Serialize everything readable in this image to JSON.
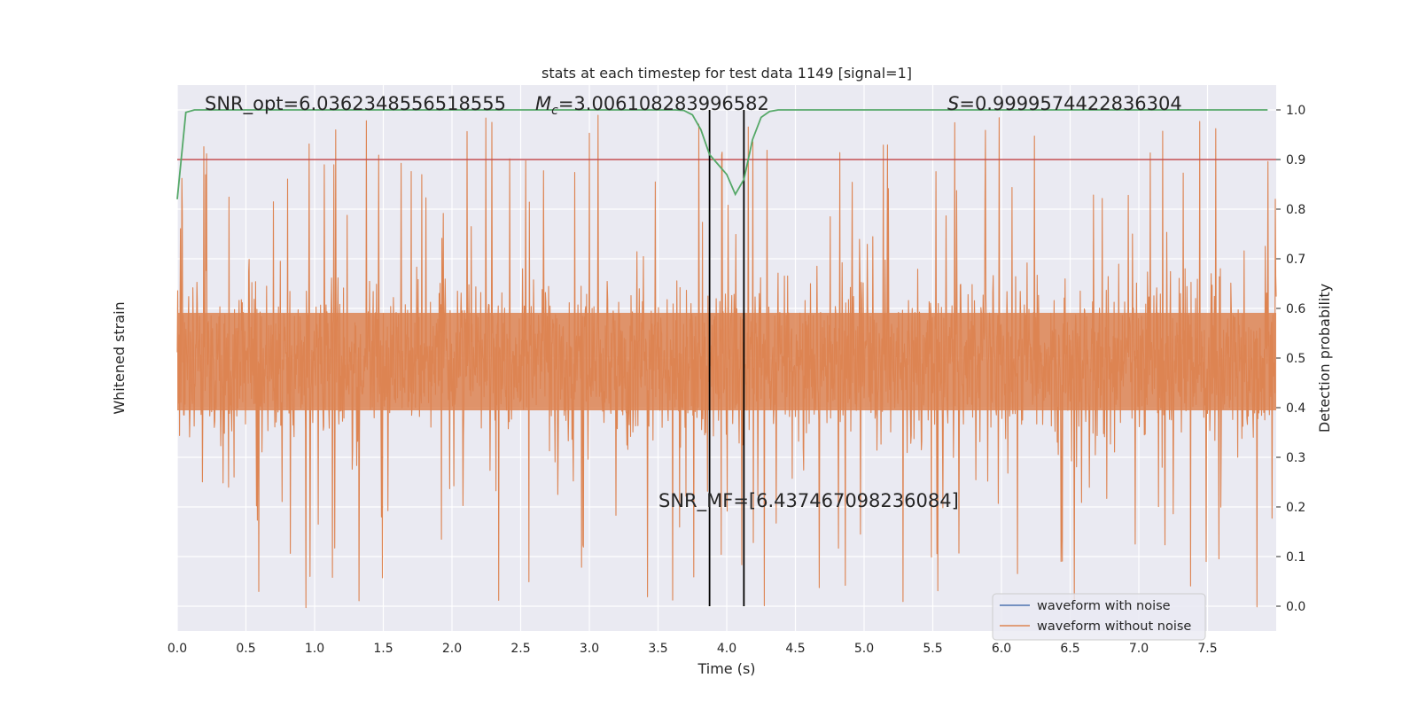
{
  "chart_data": {
    "type": "line",
    "title": "stats at each timestep for test data 1149 [signal=1]",
    "xlabel": "Time (s)",
    "ylabel_left": "Whitened strain",
    "ylabel_right": "Detection probability",
    "xlim": [
      0.0,
      8.0
    ],
    "x_ticks": [
      0.0,
      0.5,
      1.0,
      1.5,
      2.0,
      2.5,
      3.0,
      3.5,
      4.0,
      4.5,
      5.0,
      5.5,
      6.0,
      6.5,
      7.0,
      7.5
    ],
    "x_tick_labels": [
      "0.0",
      "0.5",
      "1.0",
      "1.5",
      "2.0",
      "2.5",
      "3.0",
      "3.5",
      "4.0",
      "4.5",
      "5.0",
      "5.5",
      "6.0",
      "6.5",
      "7.0",
      "7.5"
    ],
    "ylim_right": [
      -0.05,
      1.05
    ],
    "y_ticks_right": [
      0.0,
      0.1,
      0.2,
      0.3,
      0.4,
      0.5,
      0.6,
      0.7,
      0.8,
      0.9,
      1.0
    ],
    "y_tick_labels_right": [
      "0.0",
      "0.1",
      "0.2",
      "0.3",
      "0.4",
      "0.5",
      "0.6",
      "0.7",
      "0.8",
      "0.9",
      "1.0"
    ],
    "grid": true,
    "threshold": 0.9,
    "vertical_lines": [
      3.875,
      4.125
    ],
    "detection_probability": {
      "x": [
        0.0,
        0.0625,
        0.125,
        0.25,
        0.5,
        1.0,
        1.5,
        2.0,
        2.5,
        3.0,
        3.5,
        3.625,
        3.6875,
        3.75,
        3.8125,
        3.875,
        3.9375,
        4.0,
        4.0625,
        4.125,
        4.1875,
        4.25,
        4.3125,
        4.375,
        4.5,
        5.0,
        5.5,
        6.0,
        6.5,
        7.0,
        7.5,
        7.9375
      ],
      "values": [
        0.82,
        0.995,
        1.0,
        1.0,
        1.0,
        1.0,
        1.0,
        1.0,
        1.0,
        1.0,
        1.0,
        1.0,
        0.999,
        0.99,
        0.96,
        0.91,
        0.89,
        0.87,
        0.83,
        0.86,
        0.94,
        0.985,
        0.997,
        1.0,
        1.0,
        1.0,
        1.0,
        1.0,
        1.0,
        1.0,
        1.0,
        1.0
      ]
    },
    "series": [
      {
        "name": "waveform with noise",
        "color": "#4c72b0"
      },
      {
        "name": "waveform without noise",
        "color": "#dd8452"
      }
    ],
    "probability_color": "#55a868",
    "threshold_color": "#c44e52",
    "annotations": {
      "snr_opt": "SNR_opt=6.0362348556518555",
      "mc_prefix": "M",
      "mc_sub": "c",
      "mc_value": "=3.006108283996582",
      "s_prefix": "S",
      "s_value": "=0.9999574422836304",
      "snr_mf": "SNR_MF=[6.437467098236084]"
    },
    "legend_position": "lower-right"
  }
}
